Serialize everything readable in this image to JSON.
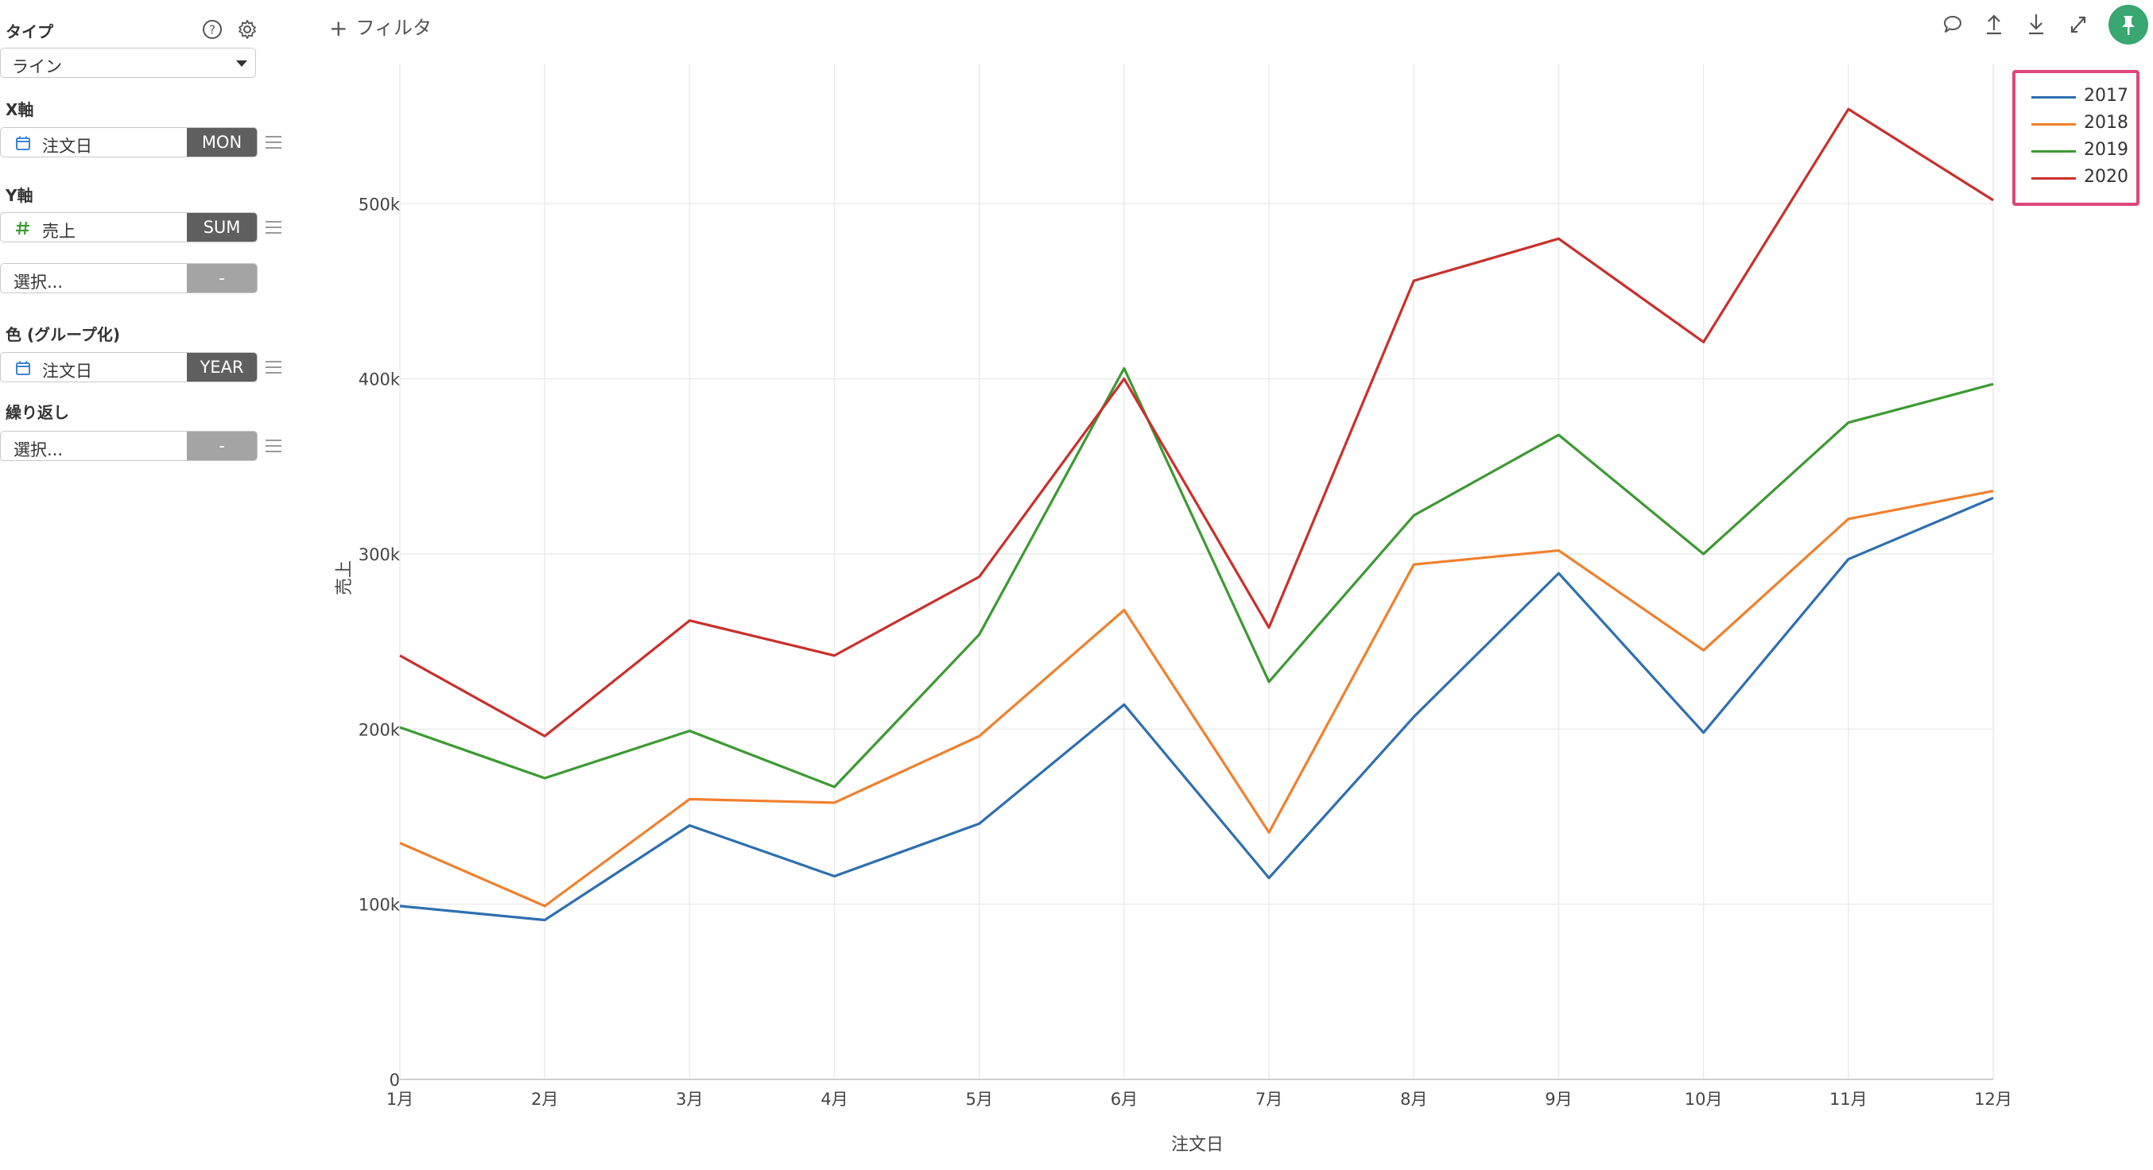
{
  "panel": {
    "type_label": "タイプ",
    "type_value": "ライン",
    "x_axis_label": "X軸",
    "x_field": "注文日",
    "x_agg": "MON",
    "y_axis_label": "Y軸",
    "y_field": "売上",
    "y_agg": "SUM",
    "y2_placeholder": "選択...",
    "y2_agg": "-",
    "color_label": "色 (グループ化)",
    "color_field": "注文日",
    "color_agg": "YEAR",
    "repeat_label": "繰り返し",
    "repeat_placeholder": "選択...",
    "repeat_agg": "-"
  },
  "toolbar": {
    "filter_label": "フィルタ",
    "plus_glyph": "+"
  },
  "colors": {
    "accent_green": "#3aa670",
    "legend_highlight": "#e0457b",
    "series_2017": "#2e6fb0",
    "series_2018": "#f0802e",
    "series_2019": "#3c9a32",
    "series_2020": "#c9302c"
  },
  "icons": [
    "help-icon",
    "gear-icon",
    "calendar-icon",
    "hash-icon",
    "drag-handle-icon",
    "comment-icon",
    "upload-icon",
    "download-icon",
    "expand-icon",
    "pin-icon",
    "plus-icon"
  ],
  "chart_data": {
    "type": "line",
    "xlabel": "注文日",
    "ylabel": "売上",
    "categories": [
      "1月",
      "2月",
      "3月",
      "4月",
      "5月",
      "6月",
      "7月",
      "8月",
      "9月",
      "10月",
      "11月",
      "12月"
    ],
    "yticks": [
      "0",
      "100k",
      "200k",
      "300k",
      "400k",
      "500k"
    ],
    "ytick_values": [
      0,
      100000,
      200000,
      300000,
      400000,
      500000
    ],
    "ylim": [
      0,
      580000
    ],
    "grid": true,
    "legend_position": "top-right",
    "series": [
      {
        "name": "2017",
        "color": "#2e6fb0",
        "values": [
          99000,
          91000,
          145000,
          116000,
          146000,
          214000,
          115000,
          207000,
          289000,
          198000,
          297000,
          332000
        ]
      },
      {
        "name": "2018",
        "color": "#f0802e",
        "values": [
          135000,
          99000,
          160000,
          158000,
          196000,
          268000,
          141000,
          294000,
          302000,
          245000,
          320000,
          336000
        ]
      },
      {
        "name": "2019",
        "color": "#3c9a32",
        "values": [
          201000,
          172000,
          199000,
          167000,
          254000,
          406000,
          227000,
          322000,
          368000,
          300000,
          375000,
          397000
        ]
      },
      {
        "name": "2020",
        "color": "#c9302c",
        "values": [
          242000,
          196000,
          262000,
          242000,
          287000,
          400000,
          258000,
          456000,
          480000,
          421000,
          554000,
          502000
        ]
      }
    ]
  }
}
